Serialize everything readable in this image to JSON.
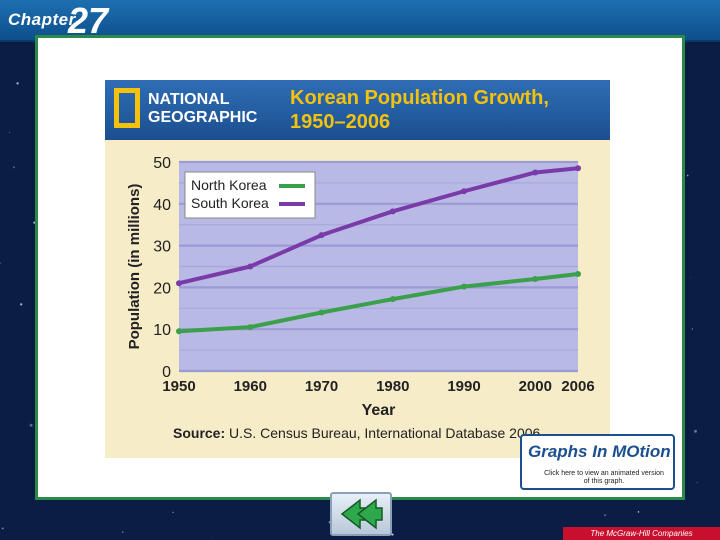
{
  "chapter": {
    "label": "Chapter",
    "number": "27"
  },
  "header": {
    "brand_line1": "NATIONAL",
    "brand_line2": "GEOGRAPHIC",
    "title_line1": "Korean Population Growth,",
    "title_line2": "1950–2006"
  },
  "chart_data": {
    "type": "line",
    "title": "Korean Population Growth, 1950–2006",
    "xlabel": "Year",
    "ylabel": "Population (in millions)",
    "x": [
      1950,
      1960,
      1970,
      1980,
      1990,
      2000,
      2006
    ],
    "xticks": [
      "1950",
      "1960",
      "1970",
      "1980",
      "1990",
      "2000",
      "2006"
    ],
    "yticks": [
      "0",
      "10",
      "20",
      "30",
      "40",
      "50"
    ],
    "ylim": [
      0,
      50
    ],
    "grid": true,
    "legend_position": "top-left",
    "series": [
      {
        "name": "North Korea",
        "color": "#3aa04a",
        "values": [
          9.5,
          10.5,
          14,
          17.2,
          20.2,
          22,
          23.2
        ]
      },
      {
        "name": "South Korea",
        "color": "#7a3aa8",
        "values": [
          21,
          25,
          32.5,
          38.2,
          43,
          47.5,
          48.5
        ]
      }
    ],
    "source_label": "Source:",
    "source_text": "U.S. Census Bureau, International Database 2006."
  },
  "graphs_button": {
    "title": "Graphs In MOtion",
    "subtitle": "Click here to view an animated version of this graph."
  },
  "footer": {
    "publisher": "The McGraw-Hill Companies"
  }
}
